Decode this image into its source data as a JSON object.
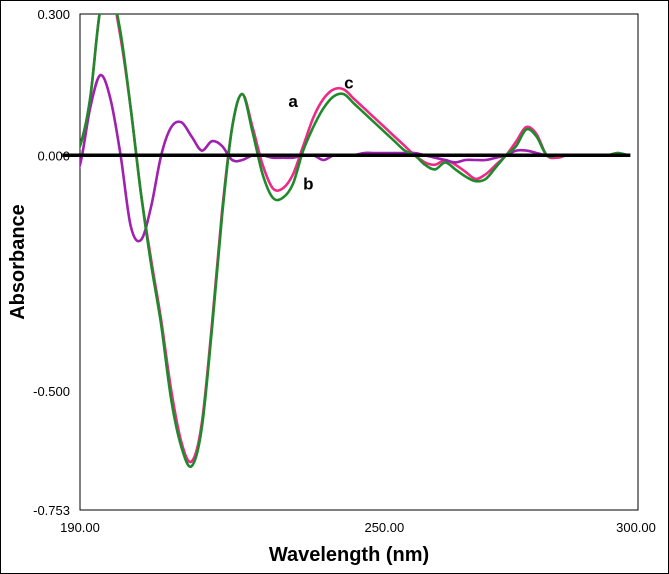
{
  "chart_data": {
    "type": "line",
    "xlabel": "Wavelength (nm)",
    "ylabel": "Absorbance",
    "xlim": [
      190.0,
      300.0
    ],
    "ylim": [
      -0.753,
      0.3
    ],
    "xticks": [
      190.0,
      250.0,
      300.0
    ],
    "xtick_labels": [
      "190.00",
      "250.00",
      "300.00"
    ],
    "yticks": [
      0.3,
      0.0,
      -0.5,
      -0.753
    ],
    "ytick_labels": [
      "0.300",
      "0.000",
      "-0.500",
      "-0.753"
    ],
    "grid": false,
    "baseline": 0.0,
    "series": [
      {
        "name": "a",
        "color": "#ee2a86",
        "x": [
          186,
          188,
          190,
          192,
          194,
          196,
          198,
          200,
          202,
          204,
          206,
          208,
          210,
          212,
          214,
          216,
          218,
          220,
          222,
          224,
          226,
          228,
          230,
          232,
          234,
          236,
          238,
          240,
          242,
          244,
          246,
          248,
          250,
          252,
          254,
          256,
          258,
          260,
          262,
          264,
          266,
          268,
          270,
          272,
          274,
          276,
          278,
          280,
          282,
          284,
          286,
          288,
          290,
          292,
          294,
          296,
          298
        ],
        "values": [
          0.0,
          -0.01,
          0.02,
          0.12,
          0.31,
          0.35,
          0.25,
          0.1,
          -0.08,
          -0.22,
          -0.35,
          -0.5,
          -0.61,
          -0.65,
          -0.57,
          -0.36,
          -0.12,
          0.06,
          0.13,
          0.06,
          -0.02,
          -0.07,
          -0.07,
          -0.04,
          0.02,
          0.08,
          0.12,
          0.14,
          0.14,
          0.12,
          0.1,
          0.08,
          0.06,
          0.04,
          0.02,
          0.0,
          -0.015,
          -0.02,
          -0.01,
          -0.02,
          -0.035,
          -0.05,
          -0.04,
          -0.02,
          0.0,
          0.03,
          0.06,
          0.045,
          0.0,
          -0.005,
          0.0,
          0.0,
          0.0,
          0.0,
          0.0,
          0.005,
          0.0
        ]
      },
      {
        "name": "b",
        "color": "#a020b0",
        "x": [
          186,
          188,
          190,
          192,
          194,
          196,
          198,
          200,
          202,
          204,
          206,
          208,
          210,
          212,
          214,
          216,
          218,
          220,
          222,
          224,
          226,
          228,
          230,
          232,
          234,
          236,
          238,
          240,
          242,
          244,
          246,
          248,
          250,
          252,
          254,
          256,
          258,
          260,
          262,
          264,
          266,
          268,
          270,
          272,
          274,
          276,
          278,
          280,
          282,
          284,
          286,
          288,
          290,
          292,
          294,
          296,
          298
        ],
        "values": [
          -0.005,
          -0.05,
          -0.02,
          0.1,
          0.17,
          0.12,
          0.0,
          -0.15,
          -0.18,
          -0.11,
          0.0,
          0.06,
          0.07,
          0.04,
          0.01,
          0.03,
          0.02,
          -0.01,
          -0.01,
          0.0,
          0.0,
          -0.005,
          -0.005,
          -0.005,
          0.0,
          0.0,
          -0.01,
          0.0,
          0.0,
          0.0,
          0.005,
          0.005,
          0.005,
          0.005,
          0.005,
          0.005,
          0.0,
          -0.005,
          -0.01,
          -0.015,
          -0.01,
          -0.01,
          -0.01,
          -0.005,
          0.0,
          0.01,
          0.01,
          0.005,
          0.0,
          0.0,
          0.0,
          0.0,
          0.0,
          0.0,
          0.0,
          0.0,
          0.0
        ]
      },
      {
        "name": "c",
        "color": "#1f8a2a",
        "x": [
          186,
          188,
          190,
          192,
          194,
          196,
          198,
          200,
          202,
          204,
          206,
          208,
          210,
          212,
          214,
          216,
          218,
          220,
          222,
          224,
          226,
          228,
          230,
          232,
          234,
          236,
          238,
          240,
          242,
          244,
          246,
          248,
          250,
          252,
          254,
          256,
          258,
          260,
          262,
          264,
          266,
          268,
          270,
          272,
          274,
          276,
          278,
          280,
          282,
          284,
          286,
          288,
          290,
          292,
          294,
          296,
          298
        ],
        "values": [
          0.0,
          -0.01,
          0.02,
          0.12,
          0.31,
          0.35,
          0.26,
          0.1,
          -0.08,
          -0.23,
          -0.36,
          -0.52,
          -0.62,
          -0.66,
          -0.58,
          -0.37,
          -0.13,
          0.06,
          0.13,
          0.05,
          -0.04,
          -0.09,
          -0.09,
          -0.06,
          0.01,
          0.06,
          0.1,
          0.125,
          0.13,
          0.11,
          0.09,
          0.07,
          0.05,
          0.03,
          0.01,
          0.0,
          -0.02,
          -0.03,
          -0.015,
          -0.03,
          -0.045,
          -0.055,
          -0.05,
          -0.025,
          0.0,
          0.02,
          0.055,
          0.04,
          0.0,
          0.0,
          0.0,
          0.0,
          0.0,
          0.0,
          0.0,
          0.005,
          0.0
        ]
      }
    ],
    "annotations": [
      {
        "text": "a",
        "x": 232,
        "y": 0.115
      },
      {
        "text": "b",
        "x": 235,
        "y": -0.06
      },
      {
        "text": "c",
        "x": 243,
        "y": 0.155
      }
    ]
  }
}
